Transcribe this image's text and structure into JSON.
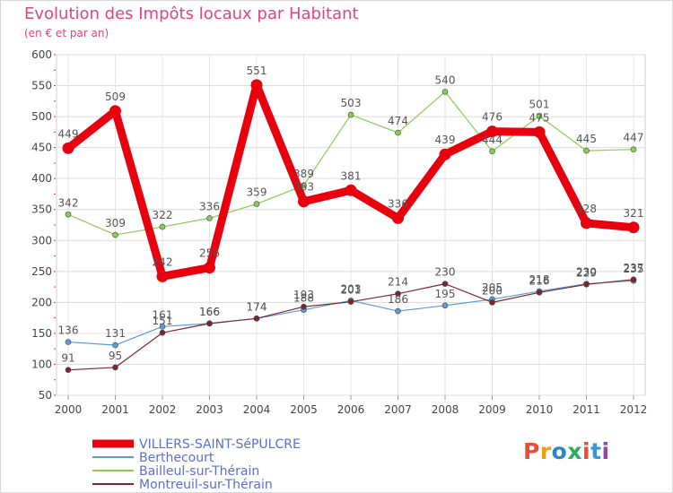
{
  "chart_data": {
    "type": "line",
    "title": "Evolution des Impôts locaux par Habitant",
    "subtitle": "(en € et par an)",
    "x": [
      "2000",
      "2001",
      "2002",
      "2003",
      "2004",
      "2005",
      "2006",
      "2007",
      "2008",
      "2009",
      "2010",
      "2011",
      "2012"
    ],
    "ylim": [
      50,
      600
    ],
    "yticks": [
      50,
      100,
      150,
      200,
      250,
      300,
      350,
      400,
      450,
      500,
      550,
      600
    ],
    "grid": true,
    "legend_position": "bottom-left",
    "series": [
      {
        "name": "VILLERS-SAINT-SéPULCRE",
        "color": "#e8000e",
        "values": [
          449,
          509,
          242,
          256,
          551,
          363,
          381,
          336,
          439,
          476,
          475,
          328,
          321
        ]
      },
      {
        "name": "Berthecourt",
        "color": "#5a9bd4",
        "values": [
          136,
          131,
          161,
          166,
          174,
          188,
          203,
          186,
          195,
          205,
          218,
          230,
          235
        ]
      },
      {
        "name": "Bailleul-sur-Thérain",
        "color": "#88cc55",
        "values": [
          342,
          309,
          322,
          336,
          359,
          389,
          503,
          474,
          540,
          444,
          501,
          445,
          447
        ]
      },
      {
        "name": "Montreuil-sur-Thérain",
        "color": "#7a2630",
        "values": [
          91,
          95,
          151,
          166,
          174,
          193,
          201,
          214,
          230,
          200,
          216,
          229,
          237
        ]
      }
    ]
  },
  "logo": {
    "text": "Proxiti"
  }
}
